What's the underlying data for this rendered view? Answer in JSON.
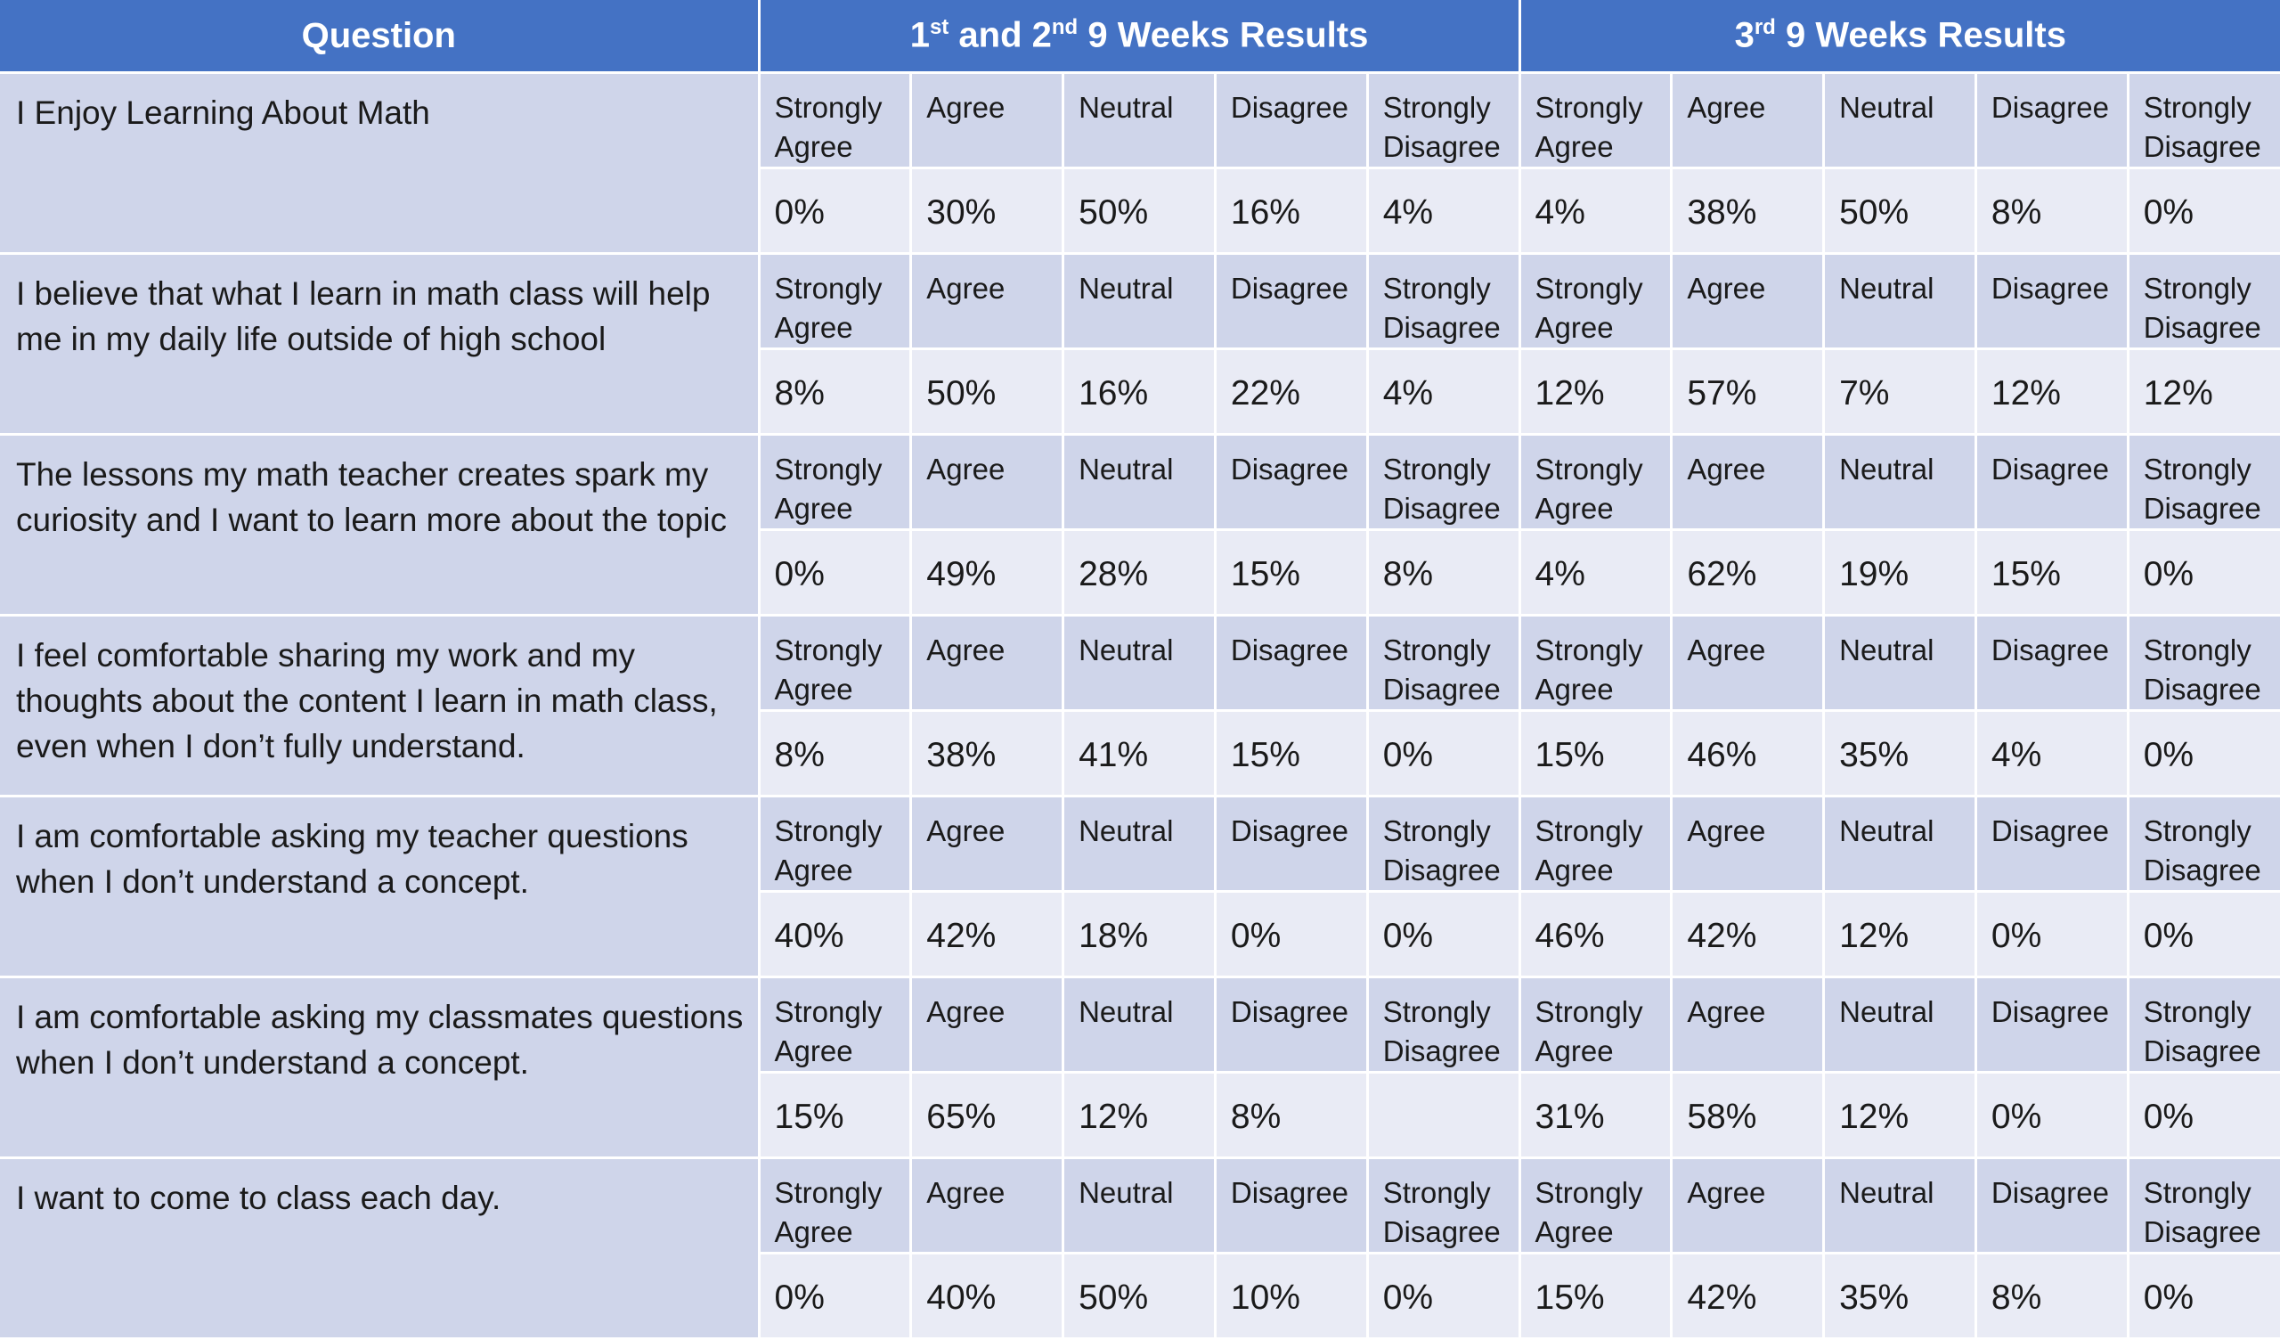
{
  "header": {
    "question": "Question",
    "period1": {
      "ord1": "1",
      "sup1": "st",
      "mid": " and 2",
      "sup2": "nd",
      "rest": " 9 Weeks Results"
    },
    "period2": {
      "ord1": "3",
      "sup1": "rd",
      "rest": " 9 Weeks Results"
    }
  },
  "response_labels": [
    "Strongly Agree",
    "Agree",
    "Neutral",
    "Disagree",
    "Strongly Disagree"
  ],
  "rows": [
    {
      "question": "I Enjoy Learning About Math",
      "period1": [
        "0%",
        "30%",
        "50%",
        "16%",
        "4%"
      ],
      "period2": [
        "4%",
        "38%",
        "50%",
        "8%",
        "0%"
      ]
    },
    {
      "question": "I believe that what I learn in math class will help me in my daily life outside of high school",
      "period1": [
        "8%",
        "50%",
        "16%",
        "22%",
        "4%"
      ],
      "period2": [
        "12%",
        "57%",
        "7%",
        "12%",
        "12%"
      ]
    },
    {
      "question": "The lessons my math teacher creates spark my curiosity and I want to learn more about the topic",
      "period1": [
        "0%",
        "49%",
        "28%",
        "15%",
        "8%"
      ],
      "period2": [
        "4%",
        "62%",
        "19%",
        "15%",
        "0%"
      ]
    },
    {
      "question": "I feel comfortable sharing my work and my thoughts about the content I learn in math class, even when I don’t fully understand.",
      "period1": [
        "8%",
        "38%",
        "41%",
        "15%",
        "0%"
      ],
      "period2": [
        "15%",
        "46%",
        "35%",
        "4%",
        "0%"
      ]
    },
    {
      "question": "I am comfortable asking my teacher questions when I don’t understand a concept.",
      "period1": [
        "40%",
        "42%",
        "18%",
        "0%",
        "0%"
      ],
      "period2": [
        "46%",
        "42%",
        "12%",
        "0%",
        "0%"
      ]
    },
    {
      "question": "I am comfortable asking my classmates questions when I don’t understand a concept.",
      "period1": [
        "15%",
        "65%",
        "12%",
        "8%",
        ""
      ],
      "period2": [
        "31%",
        "58%",
        "12%",
        "0%",
        "0%"
      ]
    },
    {
      "question": "I want to come to class each day.",
      "period1": [
        "0%",
        "40%",
        "50%",
        "10%",
        "0%"
      ],
      "period2": [
        "15%",
        "42%",
        "35%",
        "8%",
        "0%"
      ]
    }
  ],
  "colors": {
    "header_bg": "#4472c4",
    "header_text": "#ffffff",
    "question_bg": "#cfd5ea",
    "label_bg": "#cfd5ea",
    "value_bg": "#e9ebf5",
    "border": "#ffffff"
  }
}
